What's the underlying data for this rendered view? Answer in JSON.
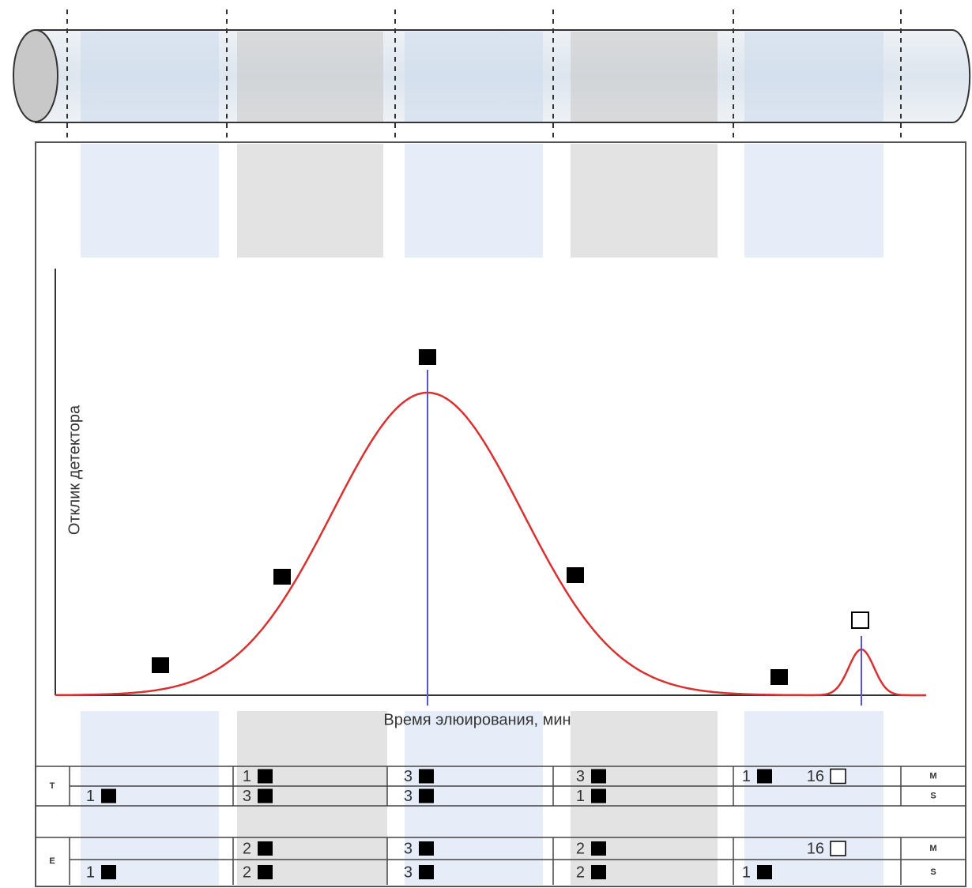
{
  "chart": {
    "y_axis_label": "Отклик детектора",
    "x_axis_label": "Время элюирования, мин"
  },
  "table": {
    "T": {
      "label": "T",
      "rows": [
        {
          "label": "M",
          "cells": [
            "",
            "1",
            "3",
            "3",
            "1",
            "16"
          ]
        },
        {
          "label": "S",
          "cells": [
            "1",
            "3",
            "3",
            "1",
            "",
            ""
          ]
        }
      ]
    },
    "E": {
      "label": "E",
      "rows": [
        {
          "label": "M",
          "cells": [
            "",
            "2",
            "3",
            "2",
            "",
            "16"
          ]
        },
        {
          "label": "S",
          "cells": [
            "1",
            "2",
            "3",
            "2",
            "1",
            ""
          ]
        }
      ]
    }
  }
}
